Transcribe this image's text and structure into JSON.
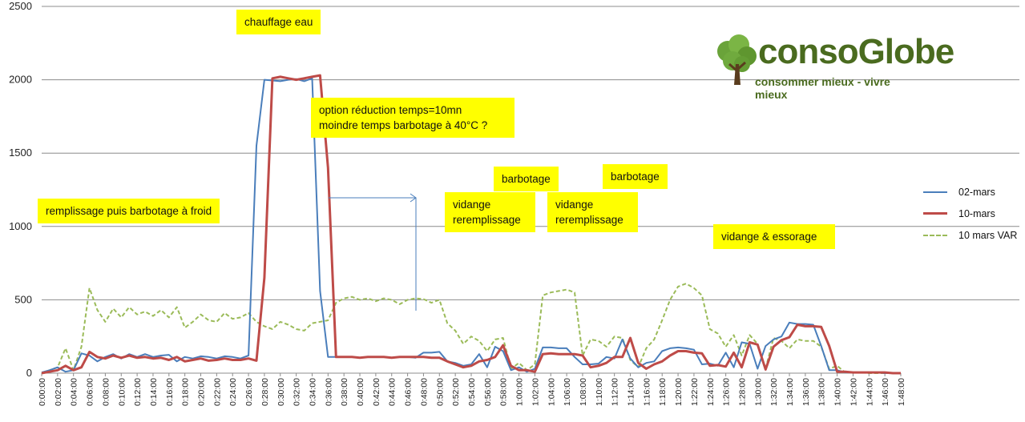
{
  "chart_data": {
    "type": "line",
    "ylim": [
      0,
      2500
    ],
    "yticks": [
      "0",
      "500",
      "1000",
      "1500",
      "2000",
      "2500"
    ],
    "grid": true,
    "legend_position": "right",
    "x_tick_labels": [
      "0:00:00",
      "0:02:00",
      "0:04:00",
      "0:06:00",
      "0:08:00",
      "0:10:00",
      "0:12:00",
      "0:14:00",
      "0:16:00",
      "0:18:00",
      "0:20:00",
      "0:22:00",
      "0:24:00",
      "0:26:00",
      "0:28:00",
      "0:30:00",
      "0:32:00",
      "0:34:00",
      "0:36:00",
      "0:38:00",
      "0:40:00",
      "0:42:00",
      "0:44:00",
      "0:46:00",
      "0:48:00",
      "0:50:00",
      "0:52:00",
      "0:54:00",
      "0:56:00",
      "0:58:00",
      "1:00:00",
      "1:02:00",
      "1:04:00",
      "1:06:00",
      "1:08:00",
      "1:10:00",
      "1:12:00",
      "1:14:00",
      "1:16:00",
      "1:18:00",
      "1:20:00",
      "1:22:00",
      "1:24:00",
      "1:26:00",
      "1:28:00",
      "1:30:00",
      "1:32:00",
      "1:34:00",
      "1:36:00",
      "1:38:00",
      "1:40:00",
      "1:42:00",
      "1:44:00",
      "1:46:00",
      "1:48:00"
    ],
    "x_minutes": [
      0,
      1,
      2,
      3,
      4,
      5,
      6,
      7,
      8,
      9,
      10,
      11,
      12,
      13,
      14,
      15,
      16,
      17,
      18,
      19,
      20,
      21,
      22,
      23,
      24,
      25,
      26,
      27,
      28,
      29,
      30,
      31,
      32,
      33,
      34,
      35,
      36,
      37,
      38,
      39,
      40,
      41,
      42,
      43,
      44,
      45,
      46,
      47,
      48,
      49,
      50,
      51,
      52,
      53,
      54,
      55,
      56,
      57,
      58,
      59,
      60,
      61,
      62,
      63,
      64,
      65,
      66,
      67,
      68,
      69,
      70,
      71,
      72,
      73,
      74,
      75,
      76,
      77,
      78,
      79,
      80,
      81,
      82,
      83,
      84,
      85,
      86,
      87,
      88,
      89,
      90,
      91,
      92,
      93,
      94,
      95,
      96,
      97,
      98,
      99,
      100,
      101,
      102,
      103,
      104,
      105,
      106,
      107,
      108
    ],
    "series": [
      {
        "name": "02-mars",
        "color": "#4a7ebb",
        "style": "solid",
        "values": [
          5,
          20,
          40,
          10,
          20,
          135,
          120,
          80,
          110,
          130,
          100,
          130,
          110,
          130,
          110,
          120,
          125,
          80,
          110,
          100,
          115,
          110,
          100,
          115,
          110,
          100,
          120,
          1550,
          2000,
          1995,
          1990,
          2000,
          2005,
          1990,
          2010,
          560,
          110,
          110,
          110,
          110,
          105,
          110,
          110,
          110,
          105,
          110,
          110,
          105,
          140,
          140,
          145,
          80,
          70,
          50,
          60,
          130,
          40,
          180,
          150,
          20,
          40,
          10,
          30,
          175,
          175,
          170,
          170,
          110,
          60,
          60,
          65,
          110,
          100,
          230,
          100,
          40,
          70,
          80,
          150,
          170,
          175,
          170,
          160,
          60,
          65,
          50,
          140,
          40,
          210,
          200,
          30,
          185,
          230,
          250,
          345,
          335,
          335,
          330,
          185,
          20,
          20,
          5,
          5,
          5,
          5,
          5,
          0,
          0,
          0
        ]
      },
      {
        "name": "10-mars",
        "color": "#be4b48",
        "style": "solid",
        "values": [
          0,
          10,
          20,
          50,
          20,
          40,
          145,
          110,
          100,
          120,
          105,
          120,
          105,
          110,
          100,
          105,
          90,
          110,
          80,
          90,
          100,
          85,
          90,
          100,
          90,
          90,
          100,
          85,
          650,
          2010,
          2020,
          2010,
          2000,
          2010,
          2020,
          2030,
          1400,
          110,
          110,
          110,
          105,
          110,
          110,
          110,
          105,
          110,
          110,
          110,
          110,
          105,
          105,
          80,
          60,
          40,
          50,
          80,
          90,
          110,
          190,
          50,
          20,
          20,
          10,
          130,
          135,
          130,
          130,
          130,
          120,
          40,
          50,
          70,
          110,
          110,
          240,
          70,
          30,
          60,
          80,
          120,
          150,
          150,
          140,
          135,
          50,
          55,
          45,
          140,
          40,
          210,
          195,
          25,
          180,
          225,
          245,
          330,
          320,
          320,
          315,
          185,
          10,
          10,
          5,
          5,
          5,
          5,
          5,
          0,
          0
        ]
      },
      {
        "name": "10 mars VAR",
        "color": "#9bbb59",
        "style": "dashed",
        "values": [
          0,
          20,
          40,
          170,
          20,
          180,
          580,
          430,
          350,
          440,
          380,
          450,
          400,
          420,
          390,
          430,
          380,
          450,
          310,
          350,
          400,
          360,
          350,
          410,
          370,
          380,
          410,
          350,
          320,
          300,
          350,
          330,
          300,
          290,
          340,
          350,
          360,
          480,
          510,
          520,
          500,
          510,
          490,
          510,
          500,
          470,
          500,
          510,
          505,
          480,
          500,
          340,
          290,
          200,
          250,
          220,
          150,
          230,
          240,
          30,
          70,
          20,
          60,
          530,
          550,
          560,
          570,
          550,
          120,
          230,
          220,
          180,
          250,
          240,
          90,
          40,
          170,
          230,
          360,
          500,
          590,
          610,
          580,
          530,
          300,
          270,
          180,
          260,
          120,
          260,
          200,
          30,
          240,
          220,
          170,
          230,
          220,
          220,
          180,
          30,
          50,
          5,
          5,
          5,
          0,
          0,
          0,
          0,
          0
        ]
      }
    ],
    "annotations": [
      "chauffage eau",
      "remplissage puis barbotage à froid",
      "option réduction temps=10mn",
      "moindre temps  barbotage à 40°C ?",
      "barbotage",
      "vidange",
      "reremplissage",
      "barbotage",
      "vidange",
      "reremplissage",
      "vidange & essorage"
    ]
  },
  "logo": {
    "word": "consoGlobe",
    "tagline": "consommer mieux - vivre mieux"
  }
}
